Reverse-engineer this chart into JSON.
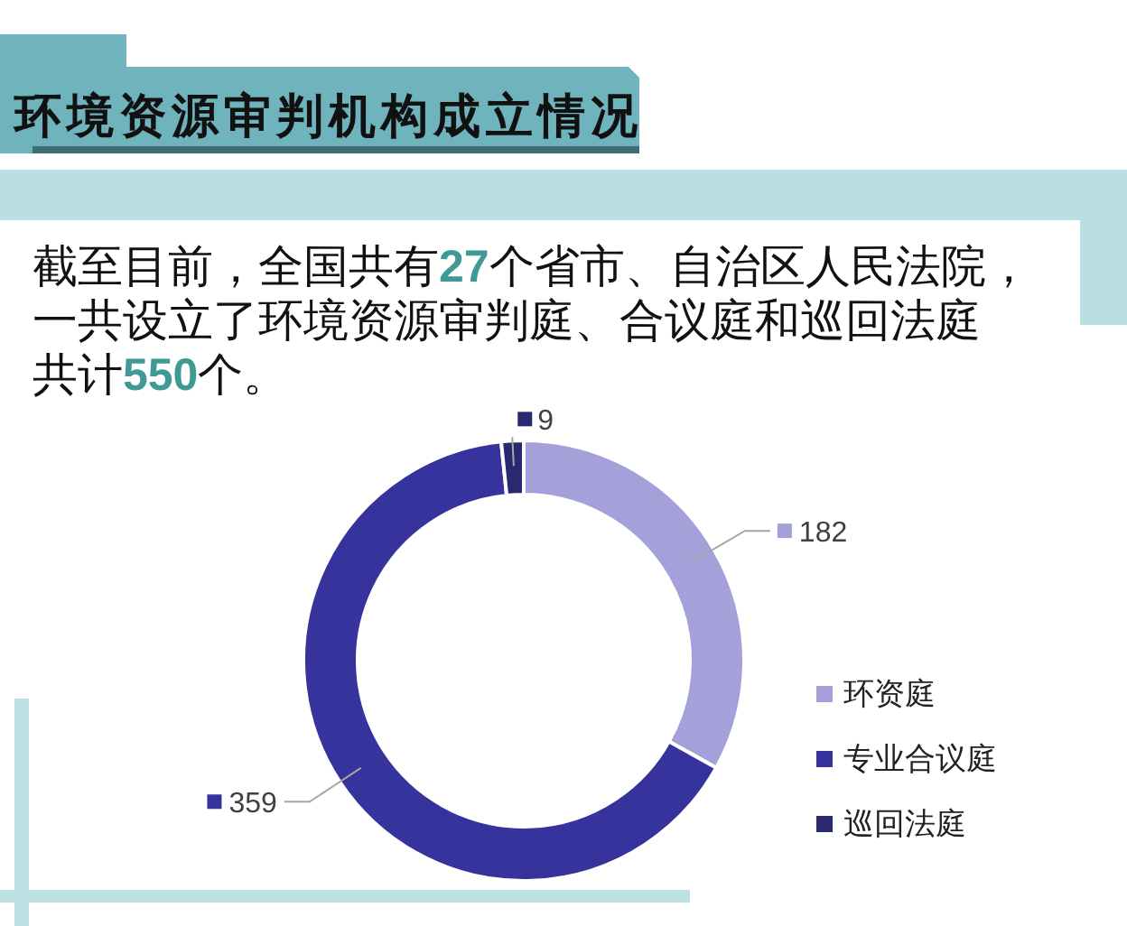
{
  "chart_data": {
    "type": "donut",
    "title": "环境资源审判机构成立情况",
    "subtitle": "截至目前，全国共有27个省市、自治区人民法院，一共设立了环境资源审判庭、合议庭和巡回法庭共计550个。",
    "categories": [
      "环资庭",
      "专业合议庭",
      "巡回法庭"
    ],
    "values": [
      182,
      359,
      9
    ],
    "colors": [
      "#a4a0da",
      "#36339c",
      "#2a286e"
    ],
    "data_labels": true,
    "legend": "right"
  }
}
